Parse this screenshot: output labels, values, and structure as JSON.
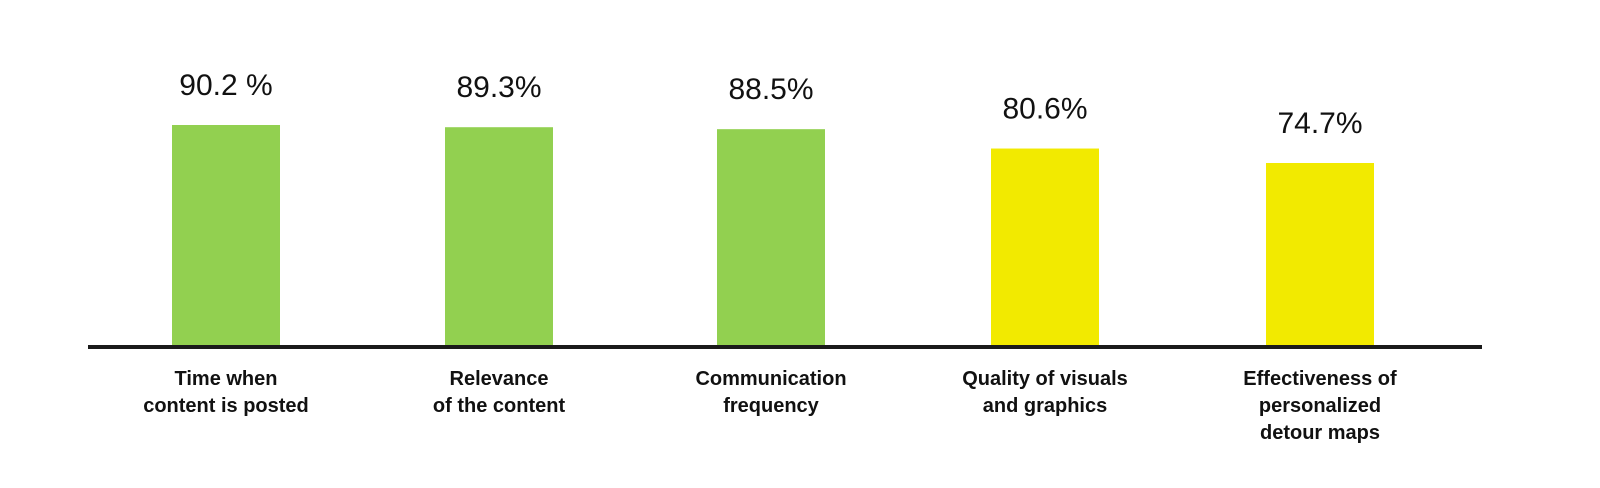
{
  "chart_data": {
    "type": "bar",
    "categories": [
      [
        "Time when",
        "content is posted"
      ],
      [
        "Relevance",
        "of the content"
      ],
      [
        "Communication",
        "frequency"
      ],
      [
        "Quality of visuals",
        "and graphics"
      ],
      [
        "Effectiveness of",
        "personalized",
        "detour maps"
      ]
    ],
    "values": [
      90.2,
      89.3,
      88.5,
      80.6,
      74.7
    ],
    "value_labels": [
      "90.2 %",
      "89.3%",
      "88.5%",
      "80.6%",
      "74.7%"
    ],
    "bar_colors": [
      "#92d050",
      "#92d050",
      "#92d050",
      "#f2ea00",
      "#f2ea00"
    ],
    "axis_color": "#1a1a1a",
    "ylim": [
      0,
      100
    ],
    "grid": false,
    "legend": "none"
  }
}
